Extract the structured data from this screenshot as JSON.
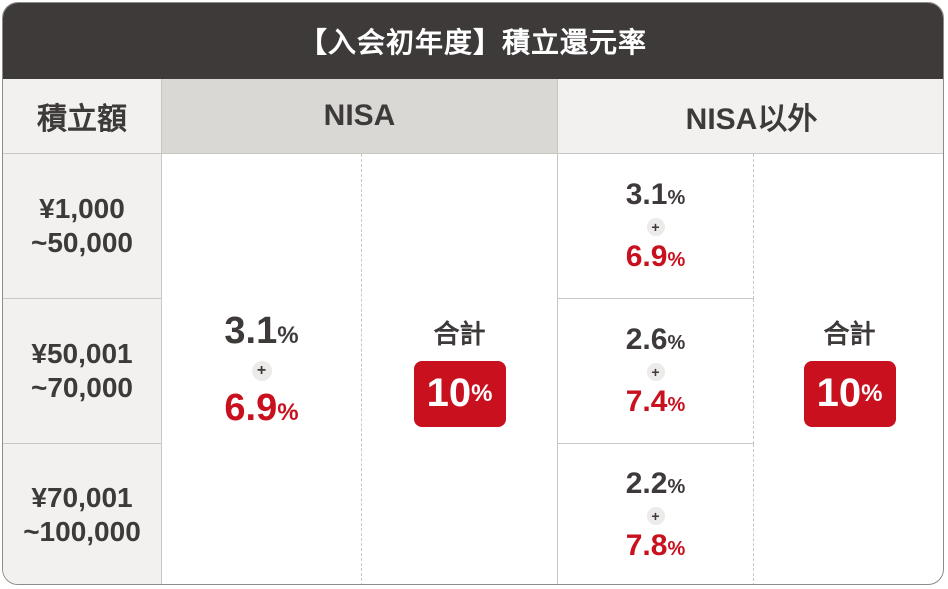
{
  "title": "【入会初年度】積立還元率",
  "header": {
    "amount": "積立額",
    "nisa": "NISA",
    "non_nisa": "NISA以外"
  },
  "rows": [
    {
      "amount_line1": "¥1,000",
      "amount_line2": "~50,000",
      "non_nisa_base": "3.1",
      "non_nisa_bonus": "6.9"
    },
    {
      "amount_line1": "¥50,001",
      "amount_line2": "~70,000",
      "non_nisa_base": "2.6",
      "non_nisa_bonus": "7.4"
    },
    {
      "amount_line1": "¥70,001",
      "amount_line2": "~100,000",
      "non_nisa_base": "2.2",
      "non_nisa_bonus": "7.8"
    }
  ],
  "nisa": {
    "base": "3.1",
    "bonus": "6.9"
  },
  "total": {
    "label": "合計",
    "value": "10"
  },
  "symbols": {
    "plus": "+",
    "percent": "%"
  },
  "colors": {
    "header_bg": "#3e3a39",
    "accent_red": "#c8101e",
    "nisa_header_bg": "#d9d8d5",
    "label_bg": "#f2f1ef"
  }
}
